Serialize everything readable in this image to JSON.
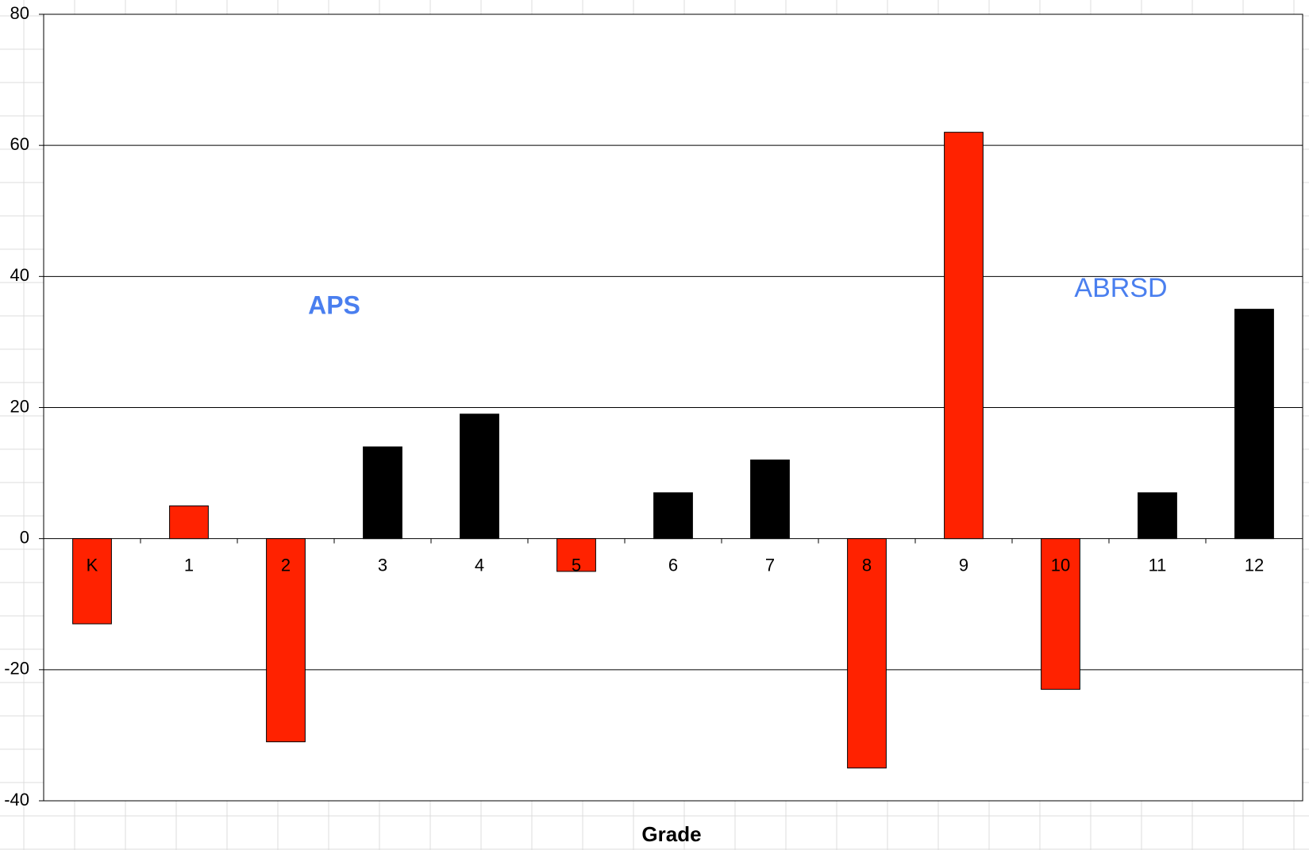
{
  "chart_data": {
    "type": "bar",
    "x_label": "Grade",
    "annotations": [
      "APS",
      "ABRSD"
    ],
    "categories": [
      "K",
      "1",
      "2",
      "3",
      "4",
      "5",
      "6",
      "7",
      "8",
      "9",
      "10",
      "11",
      "12"
    ],
    "values": [
      -13,
      5,
      -31,
      14,
      19,
      -5,
      7,
      12,
      -35,
      62,
      -23,
      7,
      35
    ],
    "colors": [
      "#ff2200",
      "#ff2200",
      "#ff2200",
      "#000000",
      "#000000",
      "#ff2200",
      "#000000",
      "#000000",
      "#ff2200",
      "#ff2200",
      "#ff2200",
      "#000000",
      "#000000"
    ],
    "ylim": [
      -40,
      80
    ],
    "yticks": [
      -40,
      -20,
      0,
      20,
      40,
      60,
      80
    ],
    "grid": true
  }
}
